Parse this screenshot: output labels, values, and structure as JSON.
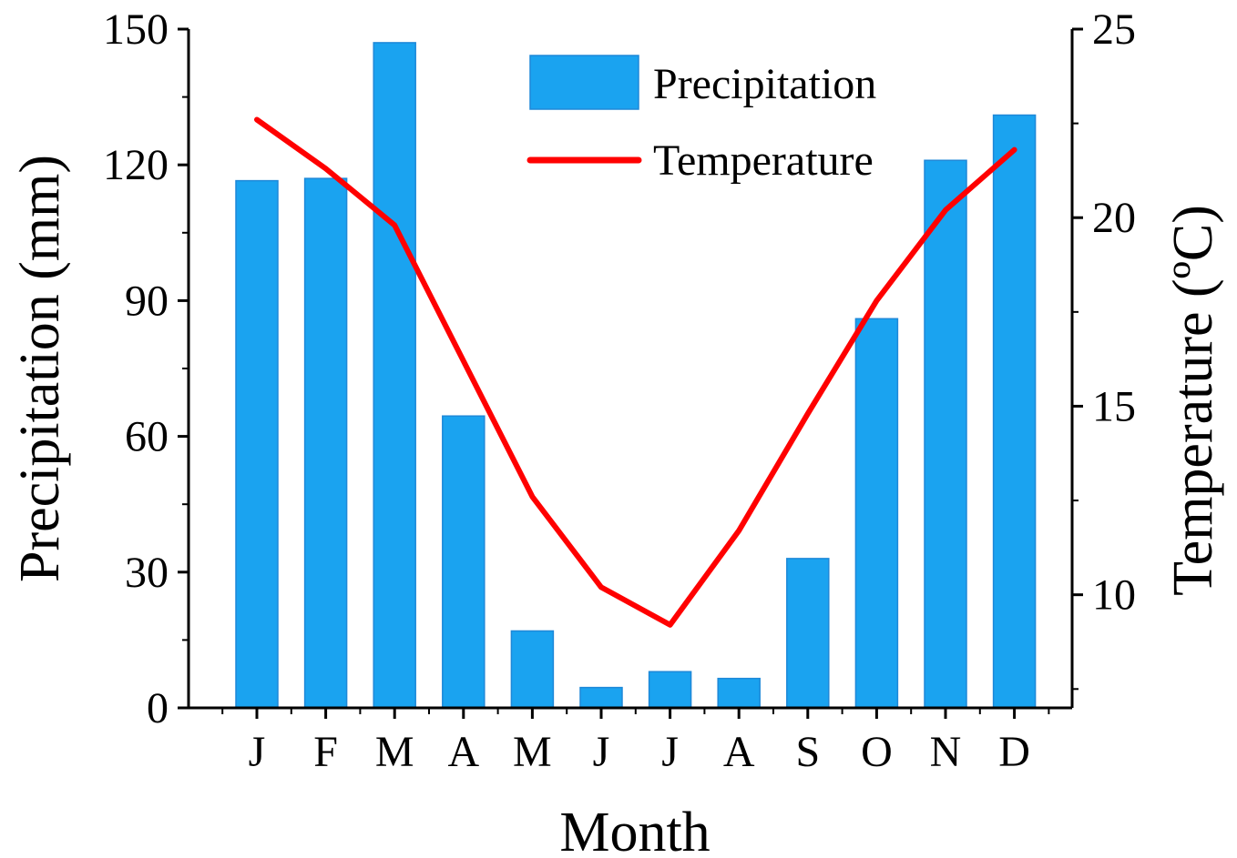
{
  "chart_data": {
    "type": "bar",
    "categories": [
      "J",
      "F",
      "M",
      "A",
      "M",
      "J",
      "J",
      "A",
      "S",
      "O",
      "N",
      "D"
    ],
    "series": [
      {
        "name": "Precipitation",
        "type": "bar",
        "axis": "left",
        "color": "#1AA3F0",
        "values": [
          116.5,
          117,
          147,
          64.5,
          17,
          4.5,
          8,
          6.5,
          33,
          86,
          121,
          131
        ]
      },
      {
        "name": "Temperature",
        "type": "line",
        "axis": "right",
        "color": "#FF0000",
        "values": [
          22.6,
          21.3,
          19.8,
          16.2,
          12.6,
          10.2,
          9.2,
          11.7,
          14.8,
          17.8,
          20.2,
          21.8
        ]
      }
    ],
    "xlabel": "Month",
    "ylabel": "Precipitation (mm)",
    "y2label": "Temperature (ºC)",
    "ylim": [
      0,
      150
    ],
    "y2lim": [
      7,
      25
    ],
    "yticks": [
      0,
      30,
      60,
      90,
      120,
      150
    ],
    "y2ticks": [
      10,
      15,
      20,
      25
    ],
    "legend_position": "top-right",
    "grid": false
  }
}
